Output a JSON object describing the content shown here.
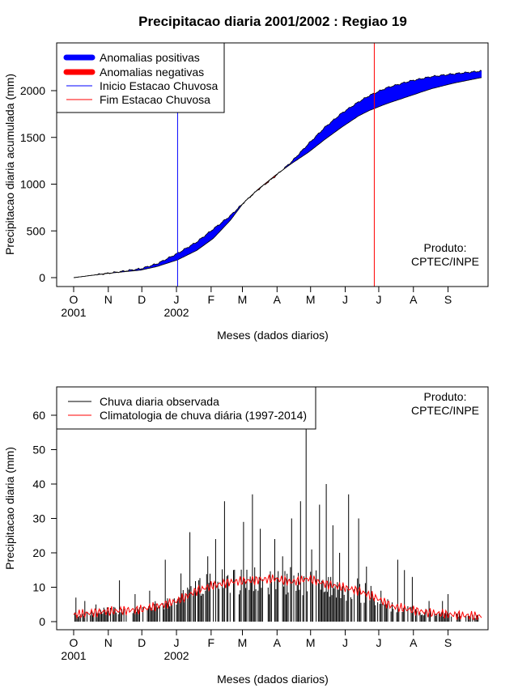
{
  "chart_data": [
    {
      "type": "area",
      "title": "Precipitacao diaria 2001/2002 : Regiao 19",
      "xlabel": "Meses (dados diarios)",
      "ylabel": "Precipitacao diaria acumulada (mm)",
      "ylim": [
        -80,
        2480
      ],
      "yticks": [
        0,
        500,
        1000,
        1500,
        2000
      ],
      "months": [
        "O",
        "N",
        "D",
        "J",
        "F",
        "M",
        "A",
        "M",
        "J",
        "J",
        "A",
        "S"
      ],
      "years": [
        "2001",
        "2002"
      ],
      "legend": [
        "Anomalias positivas",
        "Anomalias negativas",
        "Inicio Estacao Chuvosa",
        "Fim Estacao Chuvosa"
      ],
      "credit": [
        "Produto:",
        "CPTEC/INPE"
      ],
      "colors": {
        "positive": "#0000ff",
        "negative": "#ff0000",
        "onset": "#0000ff",
        "end": "#ff0000"
      },
      "onset_day": 93,
      "end_day": 269,
      "observed": [
        [
          0,
          0
        ],
        [
          30,
          45
        ],
        [
          60,
          95
        ],
        [
          75,
          150
        ],
        [
          93,
          260
        ],
        [
          110,
          380
        ],
        [
          125,
          520
        ],
        [
          140,
          660
        ],
        [
          152,
          800
        ],
        [
          165,
          940
        ],
        [
          180,
          1080
        ],
        [
          195,
          1240
        ],
        [
          210,
          1430
        ],
        [
          225,
          1610
        ],
        [
          240,
          1760
        ],
        [
          255,
          1880
        ],
        [
          265,
          1950
        ],
        [
          280,
          2030
        ],
        [
          300,
          2100
        ],
        [
          320,
          2150
        ],
        [
          340,
          2180
        ],
        [
          365,
          2210
        ]
      ],
      "climatology": [
        [
          0,
          0
        ],
        [
          30,
          45
        ],
        [
          60,
          80
        ],
        [
          75,
          120
        ],
        [
          93,
          190
        ],
        [
          110,
          290
        ],
        [
          125,
          420
        ],
        [
          140,
          610
        ],
        [
          152,
          800
        ],
        [
          165,
          945
        ],
        [
          180,
          1090
        ],
        [
          195,
          1220
        ],
        [
          210,
          1340
        ],
        [
          225,
          1480
        ],
        [
          240,
          1610
        ],
        [
          255,
          1730
        ],
        [
          265,
          1790
        ],
        [
          280,
          1860
        ],
        [
          300,
          1940
        ],
        [
          320,
          2020
        ],
        [
          340,
          2080
        ],
        [
          365,
          2140
        ]
      ]
    },
    {
      "type": "bar",
      "xlabel": "Meses (dados diarios)",
      "ylabel": "Precipitacao diaria (mm)",
      "ylim": [
        -2,
        68
      ],
      "yticks": [
        0,
        10,
        20,
        30,
        40,
        50,
        60
      ],
      "months": [
        "O",
        "N",
        "D",
        "J",
        "F",
        "M",
        "A",
        "M",
        "J",
        "J",
        "A",
        "S"
      ],
      "years": [
        "2001",
        "2002"
      ],
      "legend": [
        "Chuva diaria observada",
        "Climatologia de chuva diária (1997-2014)"
      ],
      "credit": [
        "Produto:",
        "CPTEC/INPE"
      ],
      "colors": {
        "observed": "#000000",
        "climatology": "#ff0000"
      },
      "observed_peaks": [
        [
          2,
          7
        ],
        [
          10,
          6
        ],
        [
          20,
          5
        ],
        [
          33,
          4
        ],
        [
          41,
          12
        ],
        [
          55,
          8
        ],
        [
          68,
          9
        ],
        [
          82,
          18
        ],
        [
          96,
          14
        ],
        [
          104,
          26
        ],
        [
          112,
          12
        ],
        [
          120,
          19
        ],
        [
          127,
          24
        ],
        [
          135,
          35
        ],
        [
          143,
          15
        ],
        [
          152,
          29
        ],
        [
          160,
          37
        ],
        [
          167,
          27
        ],
        [
          180,
          24
        ],
        [
          187,
          19
        ],
        [
          195,
          30
        ],
        [
          203,
          35
        ],
        [
          208,
          65
        ],
        [
          213,
          21
        ],
        [
          220,
          34
        ],
        [
          226,
          40
        ],
        [
          232,
          28
        ],
        [
          238,
          20
        ],
        [
          246,
          37
        ],
        [
          255,
          30
        ],
        [
          262,
          16
        ],
        [
          275,
          9
        ],
        [
          290,
          18
        ],
        [
          296,
          15
        ],
        [
          303,
          13
        ],
        [
          318,
          6
        ],
        [
          330,
          6
        ],
        [
          335,
          8
        ],
        [
          345,
          3
        ],
        [
          357,
          2
        ]
      ],
      "climatology_knots": [
        [
          0,
          2
        ],
        [
          30,
          3
        ],
        [
          60,
          3.5
        ],
        [
          75,
          4.5
        ],
        [
          93,
          6
        ],
        [
          110,
          9
        ],
        [
          125,
          10.5
        ],
        [
          140,
          11.5
        ],
        [
          160,
          12
        ],
        [
          180,
          12.5
        ],
        [
          195,
          11.5
        ],
        [
          210,
          12.5
        ],
        [
          225,
          11
        ],
        [
          240,
          10
        ],
        [
          255,
          9
        ],
        [
          270,
          7
        ],
        [
          285,
          4.5
        ],
        [
          300,
          3.5
        ],
        [
          320,
          2.5
        ],
        [
          340,
          2
        ],
        [
          365,
          1.5
        ]
      ]
    }
  ]
}
